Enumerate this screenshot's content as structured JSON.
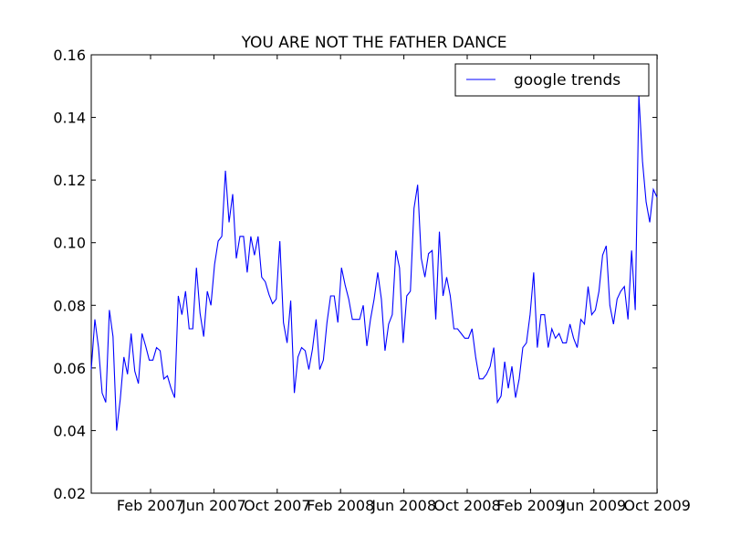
{
  "chart_data": {
    "type": "line",
    "title": "YOU ARE NOT THE FATHER DANCE",
    "xlabel": "",
    "ylabel": "",
    "ylim": [
      0.02,
      0.16
    ],
    "yticks": [
      "0.02",
      "0.04",
      "0.06",
      "0.08",
      "0.10",
      "0.12",
      "0.14",
      "0.16"
    ],
    "xticks": [
      "Feb 2007",
      "Jun 2007",
      "Oct 2007",
      "Feb 2008",
      "Jun 2008",
      "Oct 2008",
      "Feb 2009",
      "Jun 2009",
      "Oct 2009"
    ],
    "legend_position": "top-right",
    "grid": false,
    "series": [
      {
        "name": "google trends",
        "color": "#0000ff",
        "values": [
          0.0595,
          0.0755,
          0.0665,
          0.052,
          0.049,
          0.0785,
          0.07,
          0.04,
          0.05,
          0.0635,
          0.058,
          0.071,
          0.059,
          0.055,
          0.071,
          0.067,
          0.0625,
          0.0625,
          0.0665,
          0.0655,
          0.0565,
          0.0575,
          0.0535,
          0.0505,
          0.083,
          0.077,
          0.0845,
          0.0725,
          0.0725,
          0.092,
          0.0775,
          0.07,
          0.0845,
          0.08,
          0.093,
          0.1005,
          0.102,
          0.123,
          0.1065,
          0.1155,
          0.095,
          0.102,
          0.102,
          0.0905,
          0.102,
          0.096,
          0.102,
          0.089,
          0.0875,
          0.0835,
          0.0805,
          0.082,
          0.1005,
          0.0745,
          0.068,
          0.0815,
          0.052,
          0.0635,
          0.0665,
          0.0655,
          0.0595,
          0.066,
          0.0755,
          0.0595,
          0.0625,
          0.0745,
          0.083,
          0.083,
          0.0745,
          0.092,
          0.0865,
          0.082,
          0.0755,
          0.0755,
          0.0755,
          0.08,
          0.067,
          0.0755,
          0.082,
          0.0905,
          0.082,
          0.0655,
          0.074,
          0.077,
          0.0975,
          0.092,
          0.068,
          0.083,
          0.0845,
          0.111,
          0.1185,
          0.095,
          0.089,
          0.0965,
          0.0975,
          0.0755,
          0.1035,
          0.083,
          0.089,
          0.083,
          0.0725,
          0.0725,
          0.071,
          0.0695,
          0.0695,
          0.0725,
          0.0635,
          0.0565,
          0.0565,
          0.058,
          0.0605,
          0.0665,
          0.049,
          0.051,
          0.062,
          0.0535,
          0.0605,
          0.0505,
          0.0565,
          0.0665,
          0.068,
          0.077,
          0.0905,
          0.0665,
          0.077,
          0.077,
          0.0665,
          0.0725,
          0.0695,
          0.071,
          0.068,
          0.068,
          0.074,
          0.0695,
          0.0665,
          0.0755,
          0.074,
          0.086,
          0.077,
          0.0785,
          0.0845,
          0.096,
          0.099,
          0.08,
          0.074,
          0.082,
          0.0845,
          0.086,
          0.0755,
          0.0975,
          0.0785,
          0.147,
          0.126,
          0.113,
          0.1065,
          0.117,
          0.1145
        ]
      }
    ]
  }
}
